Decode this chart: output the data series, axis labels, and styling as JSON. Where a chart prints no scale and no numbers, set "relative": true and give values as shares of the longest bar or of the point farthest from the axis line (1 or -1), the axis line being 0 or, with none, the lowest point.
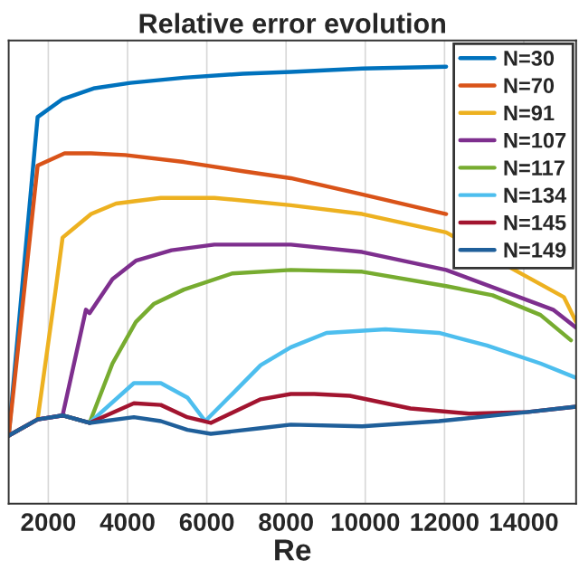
{
  "chart_data": {
    "type": "line",
    "title": "Relative error evolution",
    "xlabel": "Re",
    "relative": true,
    "xlim": [
      1000,
      15320
    ],
    "xticks": [
      2000,
      4000,
      6000,
      8000,
      10000,
      12000,
      14000
    ],
    "grid": true,
    "legend": "top right",
    "line_style": "solid",
    "series": [
      {
        "name": "N=30",
        "color": "#0072bd",
        "x": [
          1000,
          1730,
          2360,
          3170,
          4070,
          5420,
          6910,
          8120,
          9920,
          12040
        ],
        "values": [
          0.156,
          0.885,
          0.926,
          0.951,
          0.963,
          0.975,
          0.984,
          0.988,
          0.996,
          1.0
        ]
      },
      {
        "name": "N=70",
        "color": "#d95319",
        "x": [
          1000,
          1730,
          2410,
          3080,
          3940,
          5420,
          6910,
          8120,
          9920,
          12040
        ],
        "values": [
          0.156,
          0.774,
          0.802,
          0.802,
          0.798,
          0.782,
          0.761,
          0.745,
          0.708,
          0.663
        ]
      },
      {
        "name": "N=91",
        "color": "#edb120",
        "x": [
          1000,
          1730,
          2180,
          2360,
          3080,
          3710,
          4840,
          6190,
          8120,
          9920,
          12040,
          15010,
          15320
        ],
        "values": [
          0.156,
          0.193,
          0.486,
          0.609,
          0.663,
          0.687,
          0.7,
          0.7,
          0.683,
          0.663,
          0.621,
          0.473,
          0.416
        ]
      },
      {
        "name": "N=107",
        "color": "#7e2f8e",
        "x": [
          1000,
          1730,
          2360,
          2950,
          3040,
          3620,
          4210,
          5110,
          6190,
          8120,
          9920,
          12040,
          14740,
          15320
        ],
        "values": [
          0.156,
          0.193,
          0.202,
          0.444,
          0.436,
          0.514,
          0.556,
          0.58,
          0.593,
          0.593,
          0.576,
          0.535,
          0.444,
          0.403
        ]
      },
      {
        "name": "N=117",
        "color": "#77ac30",
        "x": [
          2360,
          3040,
          3620,
          4210,
          4660,
          5420,
          6640,
          8120,
          9920,
          12040,
          13210,
          14420,
          15190
        ],
        "values": [
          0.202,
          0.185,
          0.321,
          0.416,
          0.457,
          0.49,
          0.527,
          0.535,
          0.531,
          0.498,
          0.477,
          0.432,
          0.374
        ]
      },
      {
        "name": "N=134",
        "color": "#4dbeee",
        "x": [
          2360,
          3040,
          4160,
          4840,
          5510,
          5960,
          6640,
          7360,
          8120,
          9020,
          10510,
          11860,
          13070,
          14420,
          15320
        ],
        "values": [
          0.202,
          0.185,
          0.276,
          0.276,
          0.243,
          0.189,
          0.251,
          0.317,
          0.358,
          0.391,
          0.399,
          0.391,
          0.362,
          0.321,
          0.288
        ]
      },
      {
        "name": "N=145",
        "color": "#a2142f",
        "x": [
          1000,
          1730,
          2360,
          3040,
          4160,
          4840,
          5510,
          6100,
          7360,
          8120,
          8710,
          9610,
          11140,
          12620,
          14110,
          15320
        ],
        "values": [
          0.156,
          0.193,
          0.202,
          0.185,
          0.23,
          0.226,
          0.198,
          0.185,
          0.239,
          0.251,
          0.251,
          0.247,
          0.218,
          0.206,
          0.21,
          0.222
        ]
      },
      {
        "name": "N=149",
        "color": "#1f5f9a",
        "x": [
          1000,
          1730,
          2360,
          3040,
          4160,
          4840,
          5510,
          6100,
          7360,
          8120,
          9920,
          11860,
          14110,
          15320
        ],
        "values": [
          0.156,
          0.193,
          0.202,
          0.185,
          0.198,
          0.189,
          0.169,
          0.16,
          0.173,
          0.181,
          0.177,
          0.189,
          0.21,
          0.222
        ]
      }
    ]
  }
}
